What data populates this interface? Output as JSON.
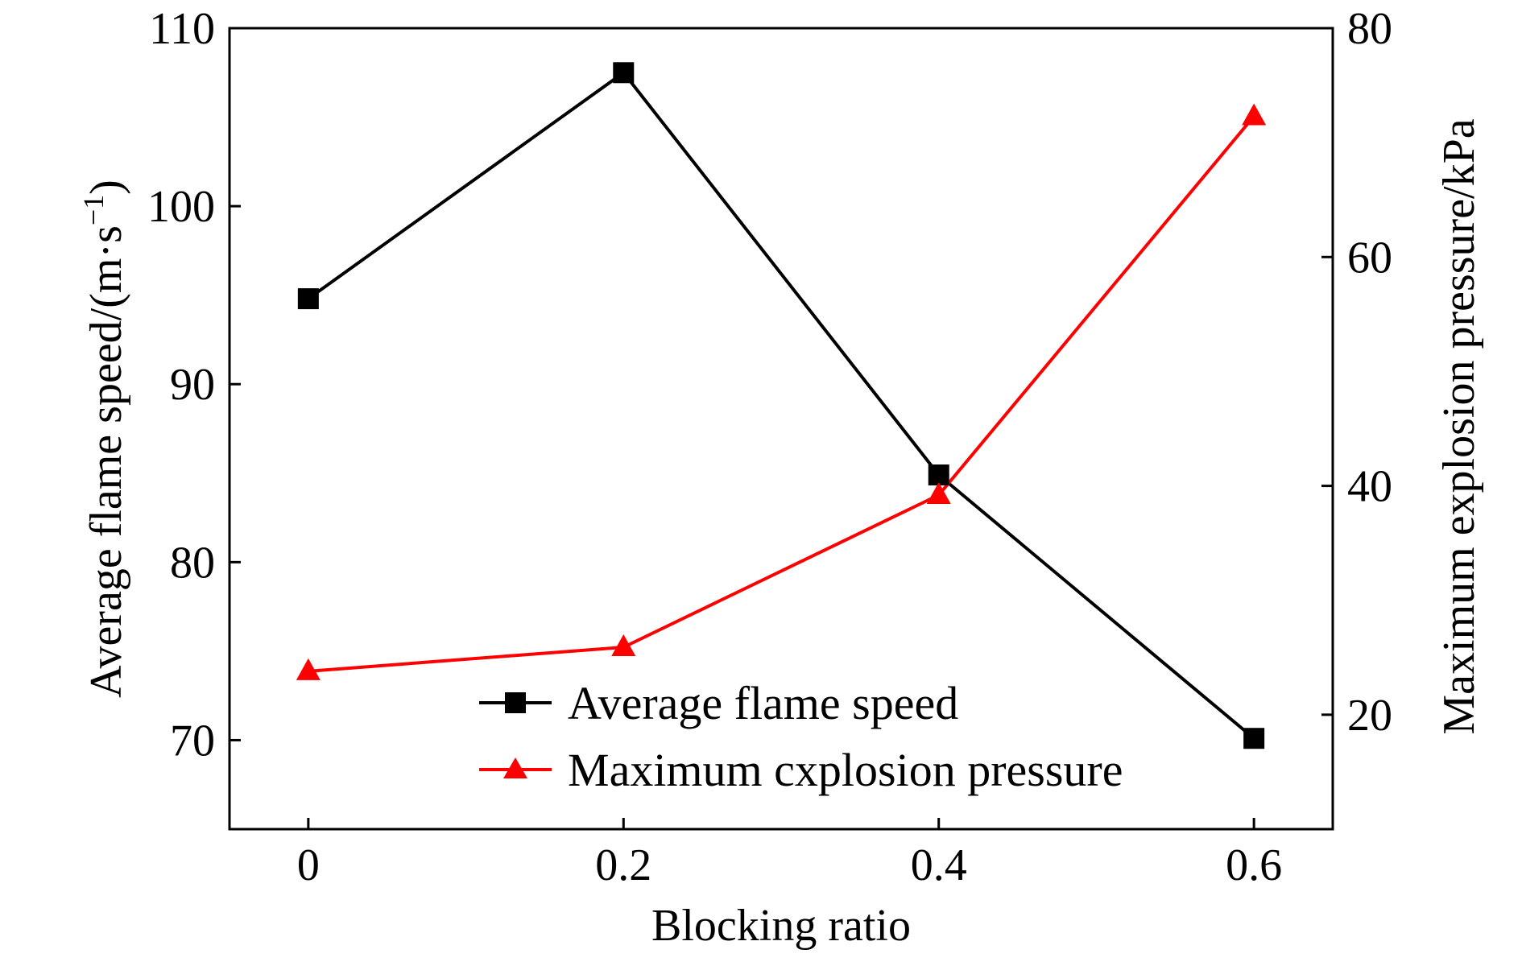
{
  "chart_data": {
    "type": "line",
    "xlabel": "Blocking ratio",
    "ylabel_left": "Average flame speed/(m·s",
    "ylabel_left_sup": "−1",
    "ylabel_left_close": ")",
    "ylabel_right": "Maximum explosion pressure/kPa",
    "x": [
      0,
      0.2,
      0.4,
      0.6
    ],
    "x_tick_labels": [
      "0",
      "0.2",
      "0.4",
      "0.6"
    ],
    "xlim": [
      -0.05,
      0.65
    ],
    "ylim_left": [
      65,
      110
    ],
    "ylim_right": [
      10,
      80
    ],
    "y_left_ticks": [
      70,
      80,
      90,
      100,
      110
    ],
    "y_right_ticks": [
      20,
      40,
      60,
      80
    ],
    "legend_position": "bottom-center",
    "grid": false,
    "series": [
      {
        "name": "Average flame speed",
        "axis": "left",
        "marker": "square",
        "color": "#000000",
        "values": [
          94.8,
          107.5,
          84.9,
          70.1
        ]
      },
      {
        "name": "Maximum cxplosion pressure",
        "axis": "right",
        "marker": "triangle",
        "color": "#ff0000",
        "values": [
          23.8,
          25.9,
          39.2,
          72.3
        ]
      }
    ]
  }
}
